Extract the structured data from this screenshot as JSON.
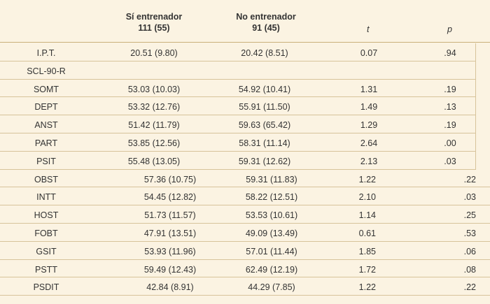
{
  "header": {
    "col1_line1": "Sí entrenador",
    "col1_line2": "111 (55)",
    "col2_line1": "No entrenador",
    "col2_line2": "91 (45)",
    "col3": "t",
    "col4": "p"
  },
  "rows": [
    {
      "label": "I.P.T.",
      "c1": "20.51 (9.80)",
      "c2": "20.42 (8.51)",
      "t": "0.07",
      "p": ".94"
    },
    {
      "label": "SCL-90-R",
      "c1": "",
      "c2": "",
      "t": "",
      "p": ""
    },
    {
      "label": "SOMT",
      "c1": "53.03 (10.03)",
      "c2": "54.92 (10.41)",
      "t": "1.31",
      "p": ".19"
    },
    {
      "label": "DEPT",
      "c1": "53.32 (12.76)",
      "c2": "55.91 (11.50)",
      "t": "1.49",
      "p": ".13"
    },
    {
      "label": "ANST",
      "c1": "51.42 (11.79)",
      "c2": "59.63 (65.42)",
      "t": "1.29",
      "p": ".19"
    },
    {
      "label": "PART",
      "c1": "53.85 (12.56)",
      "c2": "58.31 (11.14)",
      "t": "2.64",
      "p": ".00"
    },
    {
      "label": "PSIT",
      "c1": "55.48 (13.05)",
      "c2": "59.31 (12.62)",
      "t": "2.13",
      "p": ".03"
    },
    {
      "label": "OBST",
      "c1": "57.36 (10.75)",
      "c2": "59.31 (11.83)",
      "t": "1.22",
      "p": ".22"
    },
    {
      "label": "INTT",
      "c1": "54.45 (12.82)",
      "c2": "58.22 (12.51)",
      "t": "2.10",
      "p": ".03"
    },
    {
      "label": "HOST",
      "c1": "51.73 (11.57)",
      "c2": "53.53 (10.61)",
      "t": "1.14",
      "p": ".25"
    },
    {
      "label": "FOBT",
      "c1": "47.91 (13.51)",
      "c2": "49.09 (13.49)",
      "t": "0.61",
      "p": ".53"
    },
    {
      "label": "GSIT",
      "c1": "53.93 (11.96)",
      "c2": "57.01 (11.44)",
      "t": "1.85",
      "p": ".06"
    },
    {
      "label": "PSTT",
      "c1": "59.49 (12.43)",
      "c2": "62.49 (12.19)",
      "t": "1.72",
      "p": ".08"
    },
    {
      "label": "PSDIT",
      "c1": "42.84 (8.91)",
      "c2": "44.29 (7.85)",
      "t": "1.22",
      "p": ".22"
    }
  ]
}
